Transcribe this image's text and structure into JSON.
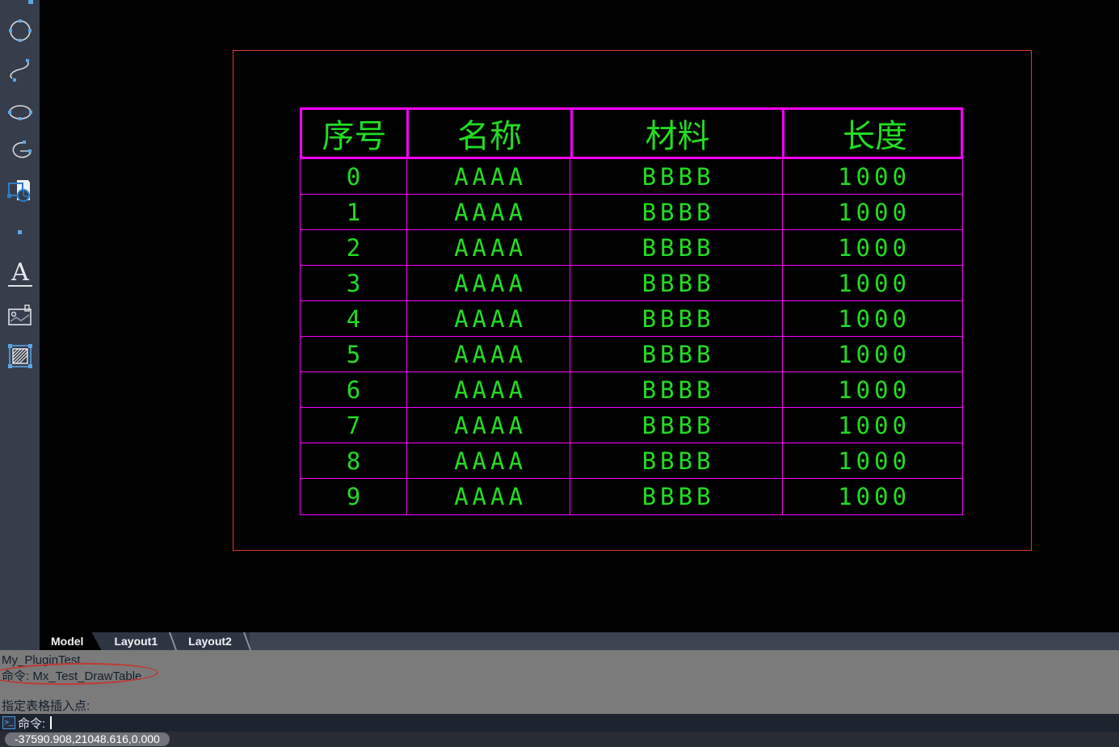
{
  "drawing": {
    "frame_color": "#e23b2d",
    "table": {
      "line_color": "#ff00ff",
      "text_color": "#22dd22",
      "headers": [
        "序号",
        "名称",
        "材料",
        "长度"
      ],
      "rows": [
        [
          "0",
          "AAAA",
          "BBBB",
          "1000"
        ],
        [
          "1",
          "AAAA",
          "BBBB",
          "1000"
        ],
        [
          "2",
          "AAAA",
          "BBBB",
          "1000"
        ],
        [
          "3",
          "AAAA",
          "BBBB",
          "1000"
        ],
        [
          "4",
          "AAAA",
          "BBBB",
          "1000"
        ],
        [
          "5",
          "AAAA",
          "BBBB",
          "1000"
        ],
        [
          "6",
          "AAAA",
          "BBBB",
          "1000"
        ],
        [
          "7",
          "AAAA",
          "BBBB",
          "1000"
        ],
        [
          "8",
          "AAAA",
          "BBBB",
          "1000"
        ],
        [
          "9",
          "AAAA",
          "BBBB",
          "1000"
        ]
      ]
    }
  },
  "sidebar": {
    "icons": [
      "circle",
      "spline",
      "ellipse",
      "arc",
      "block",
      "point",
      "text",
      "image",
      "hatch"
    ]
  },
  "tabs": {
    "items": [
      {
        "label": "Model",
        "active": true
      },
      {
        "label": "Layout1",
        "active": false
      },
      {
        "label": "Layout2",
        "active": false
      }
    ]
  },
  "command_history": {
    "lines": [
      "My_PluginTest",
      "命令: Mx_Test_DrawTable",
      "",
      "指定表格插入点:"
    ],
    "annotation_color": "#c23a32"
  },
  "command_input": {
    "prompt_label": "命令:"
  },
  "status_bar": {
    "coordinates": "-37590.908,21048.616,0.000"
  }
}
